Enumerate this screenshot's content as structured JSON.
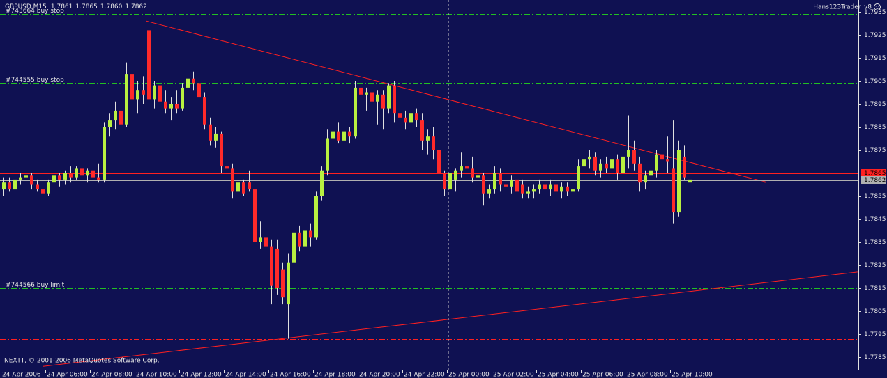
{
  "chart_data": {
    "type": "candlestick",
    "title": "GBPUSD,M15",
    "title_values": [
      "1.7861",
      "1.7865",
      "1.7860",
      "1.7862"
    ],
    "indicator": "Hans123Trader_v8",
    "copyright": "NEXTT, © 2001-2006 MetaQuotes Software Corp.",
    "up_color": "#b8f040",
    "down_color": "#ff2a2a",
    "wick_color": "#e0e0e0",
    "ylim": [
      1.778,
      1.794
    ],
    "yticks": [
      1.7935,
      1.7925,
      1.7915,
      1.7905,
      1.7895,
      1.7885,
      1.7875,
      1.7855,
      1.7845,
      1.7835,
      1.7825,
      1.7815,
      1.7805,
      1.7795,
      1.7785
    ],
    "price_lines": [
      {
        "value": 1.7865,
        "color": "#ff2020"
      },
      {
        "value": 1.7862,
        "color": "#b0b0b0"
      }
    ],
    "levels": [
      {
        "label": "#743664 buy stop",
        "value": 1.7934,
        "color": "#22c022"
      },
      {
        "label": "#744555 buy stop",
        "value": 1.7904,
        "color": "#22c022"
      },
      {
        "label": "#744566 buy limit",
        "value": 1.7815,
        "color": "#22c022"
      },
      {
        "value": 1.7793,
        "color": "#ff2020"
      }
    ],
    "trendlines": [
      {
        "x": [
          25.6,
          136.6
        ],
        "y": [
          1.7931,
          1.7861
        ],
        "color": "#ff2020"
      },
      {
        "x": [
          7.1,
          153.1
        ],
        "y": [
          1.7781,
          1.7822
        ],
        "color": "#ff2020"
      }
    ],
    "categories": [
      "24 Apr 2006",
      null,
      null,
      null,
      null,
      null,
      null,
      null,
      "24 Apr 06:00",
      null,
      null,
      null,
      null,
      null,
      null,
      null,
      "24 Apr 08:00",
      null,
      null,
      null,
      null,
      null,
      null,
      null,
      "24 Apr 10:00",
      null,
      null,
      null,
      null,
      null,
      null,
      null,
      "24 Apr 12:00",
      null,
      null,
      null,
      null,
      null,
      null,
      null,
      "24 Apr 14:00",
      null,
      null,
      null,
      null,
      null,
      null,
      null,
      "24 Apr 16:00",
      null,
      null,
      null,
      null,
      null,
      null,
      null,
      "24 Apr 18:00",
      null,
      null,
      null,
      null,
      null,
      null,
      null,
      "24 Apr 20:00",
      null,
      null,
      null,
      null,
      null,
      null,
      null,
      "24 Apr 22:00",
      null,
      null,
      null,
      null,
      null,
      null,
      null,
      "25 Apr 00:00",
      null,
      null,
      null,
      null,
      null,
      null,
      null,
      "25 Apr 02:00",
      null,
      null,
      null,
      null,
      null,
      null,
      null,
      "25 Apr 04:00",
      null,
      null,
      null,
      null,
      null,
      null,
      null,
      "25 Apr 06:00",
      null,
      null,
      null,
      null,
      null,
      null,
      null,
      "25 Apr 08:00",
      null,
      null,
      null,
      null,
      null,
      null,
      null,
      "25 Apr 10:00",
      null,
      null,
      null
    ],
    "values": [
      [
        1.7858,
        1.7863,
        1.7855,
        1.7861
      ],
      [
        1.7861,
        1.7863,
        1.7857,
        1.7858
      ],
      [
        1.7858,
        1.7864,
        1.7857,
        1.7862
      ],
      [
        1.7862,
        1.7865,
        1.786,
        1.7863
      ],
      [
        1.7863,
        1.7866,
        1.786,
        1.7864
      ],
      [
        1.7864,
        1.7865,
        1.7858,
        1.786
      ],
      [
        1.786,
        1.7862,
        1.7857,
        1.7858
      ],
      [
        1.7858,
        1.786,
        1.7854,
        1.7856
      ],
      [
        1.7856,
        1.7862,
        1.7855,
        1.7861
      ],
      [
        1.7861,
        1.7865,
        1.786,
        1.7864
      ],
      [
        1.7864,
        1.7865,
        1.7859,
        1.7862
      ],
      [
        1.7862,
        1.7866,
        1.786,
        1.7865
      ],
      [
        1.7865,
        1.7868,
        1.7861,
        1.7863
      ],
      [
        1.7863,
        1.7868,
        1.7862,
        1.7867
      ],
      [
        1.7867,
        1.7869,
        1.7863,
        1.7864
      ],
      [
        1.7864,
        1.7867,
        1.7861,
        1.7866
      ],
      [
        1.7866,
        1.7868,
        1.7862,
        1.7863
      ],
      [
        1.7863,
        1.7869,
        1.7861,
        1.7862
      ],
      [
        1.7862,
        1.7887,
        1.7861,
        1.7885
      ],
      [
        1.7885,
        1.7891,
        1.7881,
        1.7888
      ],
      [
        1.7888,
        1.7896,
        1.7884,
        1.7892
      ],
      [
        1.7892,
        1.7895,
        1.7882,
        1.7886
      ],
      [
        1.7886,
        1.7913,
        1.7885,
        1.7908
      ],
      [
        1.7908,
        1.7912,
        1.7893,
        1.7897
      ],
      [
        1.7897,
        1.7905,
        1.7891,
        1.7901
      ],
      [
        1.7901,
        1.7907,
        1.7895,
        1.7899
      ],
      [
        1.7927,
        1.7931,
        1.7894,
        1.7897
      ],
      [
        1.7897,
        1.7905,
        1.7893,
        1.7903
      ],
      [
        1.7903,
        1.7914,
        1.7894,
        1.7896
      ],
      [
        1.7896,
        1.7901,
        1.7891,
        1.7893
      ],
      [
        1.7893,
        1.7898,
        1.7888,
        1.7895
      ],
      [
        1.7895,
        1.7901,
        1.7891,
        1.7893
      ],
      [
        1.7893,
        1.7904,
        1.7892,
        1.7902
      ],
      [
        1.7902,
        1.7912,
        1.7899,
        1.7906
      ],
      [
        1.7906,
        1.7909,
        1.7901,
        1.7904
      ],
      [
        1.7904,
        1.7906,
        1.7895,
        1.7898
      ],
      [
        1.7898,
        1.79,
        1.7884,
        1.7886
      ],
      [
        1.7886,
        1.7889,
        1.7877,
        1.7879
      ],
      [
        1.7879,
        1.7885,
        1.7876,
        1.7882
      ],
      [
        1.7882,
        1.7883,
        1.7865,
        1.7868
      ],
      [
        1.7868,
        1.7871,
        1.7865,
        1.7867
      ],
      [
        1.7867,
        1.7869,
        1.7854,
        1.7857
      ],
      [
        1.7857,
        1.7865,
        1.7853,
        1.7861
      ],
      [
        1.7861,
        1.7862,
        1.7855,
        1.7856
      ],
      [
        1.7861,
        1.7866,
        1.7857,
        1.7858
      ],
      [
        1.7858,
        1.7861,
        1.7831,
        1.7835
      ],
      [
        1.7835,
        1.7844,
        1.7832,
        1.7837
      ],
      [
        1.7837,
        1.7839,
        1.7832,
        1.7833
      ],
      [
        1.7833,
        1.7836,
        1.7808,
        1.7816
      ],
      [
        1.7832,
        1.7836,
        1.7812,
        1.7815
      ],
      [
        1.7823,
        1.7826,
        1.7808,
        1.7811
      ],
      [
        1.7808,
        1.783,
        1.7793,
        1.7826
      ],
      [
        1.7826,
        1.7843,
        1.7824,
        1.7839
      ],
      [
        1.7839,
        1.7842,
        1.7831,
        1.7833
      ],
      [
        1.7833,
        1.7844,
        1.7831,
        1.784
      ],
      [
        1.784,
        1.7843,
        1.7833,
        1.7837
      ],
      [
        1.7837,
        1.7857,
        1.7836,
        1.7855
      ],
      [
        1.7855,
        1.7868,
        1.7853,
        1.7866
      ],
      [
        1.7866,
        1.7884,
        1.7864,
        1.788
      ],
      [
        1.788,
        1.7888,
        1.7877,
        1.7883
      ],
      [
        1.7883,
        1.7887,
        1.7878,
        1.7879
      ],
      [
        1.7879,
        1.7885,
        1.7877,
        1.7883
      ],
      [
        1.7883,
        1.7885,
        1.7878,
        1.7881
      ],
      [
        1.7881,
        1.7905,
        1.788,
        1.7902
      ],
      [
        1.7902,
        1.7905,
        1.7894,
        1.7899
      ],
      [
        1.7899,
        1.7902,
        1.7892,
        1.79
      ],
      [
        1.79,
        1.7904,
        1.7893,
        1.7896
      ],
      [
        1.7896,
        1.7901,
        1.7886,
        1.7899
      ],
      [
        1.7899,
        1.7901,
        1.7884,
        1.7893
      ],
      [
        1.7893,
        1.7904,
        1.7891,
        1.7903
      ],
      [
        1.7903,
        1.7905,
        1.7887,
        1.7891
      ],
      [
        1.7891,
        1.7895,
        1.7887,
        1.7889
      ],
      [
        1.7889,
        1.7892,
        1.7884,
        1.7887
      ],
      [
        1.7887,
        1.7892,
        1.7884,
        1.7891
      ],
      [
        1.7891,
        1.7893,
        1.7885,
        1.7888
      ],
      [
        1.7888,
        1.7891,
        1.7875,
        1.7879
      ],
      [
        1.7879,
        1.7884,
        1.7873,
        1.7881
      ],
      [
        1.7881,
        1.7885,
        1.7871,
        1.7875
      ],
      [
        1.7875,
        1.7877,
        1.7861,
        1.7865
      ],
      [
        1.7865,
        1.7866,
        1.7855,
        1.7858
      ],
      [
        1.7858,
        1.7867,
        1.7856,
        1.7865
      ],
      [
        1.7862,
        1.7867,
        1.7857,
        1.7866
      ],
      [
        1.7866,
        1.7874,
        1.7863,
        1.7868
      ],
      [
        1.7868,
        1.787,
        1.7861,
        1.7867
      ],
      [
        1.7867,
        1.7872,
        1.7861,
        1.7863
      ],
      [
        1.7863,
        1.7867,
        1.7859,
        1.7864
      ],
      [
        1.7864,
        1.7865,
        1.7851,
        1.7856
      ],
      [
        1.7856,
        1.786,
        1.7854,
        1.7858
      ],
      [
        1.7858,
        1.7868,
        1.7856,
        1.7865
      ],
      [
        1.7865,
        1.7867,
        1.7857,
        1.786
      ],
      [
        1.786,
        1.7863,
        1.7856,
        1.7859
      ],
      [
        1.7859,
        1.7864,
        1.7856,
        1.7862
      ],
      [
        1.7862,
        1.7863,
        1.7854,
        1.7857
      ],
      [
        1.786,
        1.7862,
        1.7854,
        1.7856
      ],
      [
        1.7856,
        1.7859,
        1.7854,
        1.7857
      ],
      [
        1.7857,
        1.786,
        1.7854,
        1.7858
      ],
      [
        1.7858,
        1.7862,
        1.7856,
        1.786
      ],
      [
        1.786,
        1.7863,
        1.7856,
        1.7858
      ],
      [
        1.7858,
        1.7862,
        1.7855,
        1.786
      ],
      [
        1.786,
        1.7863,
        1.7856,
        1.7857
      ],
      [
        1.7857,
        1.7861,
        1.7854,
        1.7859
      ],
      [
        1.7859,
        1.7861,
        1.7855,
        1.7857
      ],
      [
        1.7857,
        1.786,
        1.7854,
        1.7858
      ],
      [
        1.7858,
        1.7871,
        1.7857,
        1.7868
      ],
      [
        1.7868,
        1.7873,
        1.7865,
        1.7871
      ],
      [
        1.7871,
        1.7875,
        1.7867,
        1.7872
      ],
      [
        1.7872,
        1.7874,
        1.7864,
        1.7866
      ],
      [
        1.7866,
        1.7871,
        1.7863,
        1.7869
      ],
      [
        1.7869,
        1.7872,
        1.7865,
        1.7867
      ],
      [
        1.7867,
        1.7873,
        1.7864,
        1.7871
      ],
      [
        1.7871,
        1.7873,
        1.7862,
        1.7865
      ],
      [
        1.7865,
        1.7874,
        1.7864,
        1.7872
      ],
      [
        1.7872,
        1.789,
        1.7867,
        1.7875
      ],
      [
        1.7875,
        1.7879,
        1.7866,
        1.7869
      ],
      [
        1.7869,
        1.7872,
        1.7857,
        1.7861
      ],
      [
        1.7861,
        1.7866,
        1.7858,
        1.7864
      ],
      [
        1.7864,
        1.7868,
        1.786,
        1.7866
      ],
      [
        1.7866,
        1.7875,
        1.7863,
        1.7873
      ],
      [
        1.7873,
        1.7876,
        1.7868,
        1.7871
      ],
      [
        1.7871,
        1.7881,
        1.7865,
        1.787
      ],
      [
        1.7867,
        1.7888,
        1.7843,
        1.7848
      ],
      [
        1.7848,
        1.7879,
        1.7846,
        1.7875
      ],
      [
        1.7872,
        1.7877,
        1.7862,
        1.7863
      ],
      [
        1.7861,
        1.7865,
        1.786,
        1.7862
      ]
    ]
  }
}
